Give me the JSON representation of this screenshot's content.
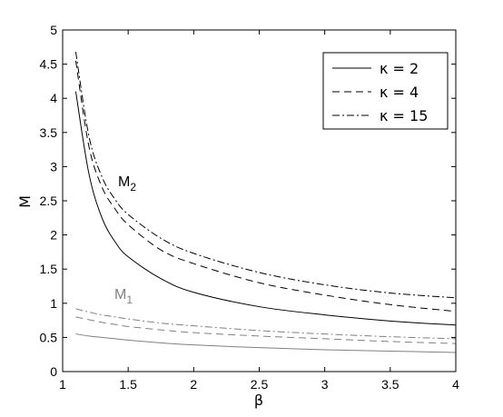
{
  "chart_data": {
    "type": "line",
    "xlabel": "β",
    "ylabel": "M",
    "xlim": [
      1,
      4
    ],
    "ylim": [
      0,
      5
    ],
    "xticks": [
      "1",
      "1.5",
      "2",
      "2.5",
      "3",
      "3.5",
      "4"
    ],
    "yticks": [
      "0",
      "0.5",
      "1",
      "1.5",
      "2",
      "2.5",
      "3",
      "3.5",
      "4",
      "4.5",
      "5"
    ],
    "grid": false,
    "legend_position": "top-right",
    "legend": [
      {
        "label": "κ = 2",
        "style": "solid"
      },
      {
        "label": "κ = 4",
        "style": "dashed"
      },
      {
        "label": "κ = 15",
        "style": "dashdot"
      }
    ],
    "annotations": [
      {
        "base": "M",
        "sub": "2",
        "color": "#000000"
      },
      {
        "base": "M",
        "sub": "1",
        "color": "#808080"
      }
    ],
    "x": [
      1.1,
      1.2,
      1.3,
      1.4,
      1.5,
      1.75,
      2.0,
      2.5,
      3.0,
      3.5,
      4.0
    ],
    "series": [
      {
        "group": "M2",
        "kappa": "2",
        "style": "solid",
        "color": "#000000",
        "values": [
          4.1,
          2.9,
          2.25,
          1.9,
          1.68,
          1.36,
          1.16,
          0.95,
          0.83,
          0.74,
          0.68
        ]
      },
      {
        "group": "M2",
        "kappa": "4",
        "style": "dashed",
        "color": "#000000",
        "values": [
          4.55,
          3.3,
          2.7,
          2.38,
          2.15,
          1.78,
          1.58,
          1.3,
          1.12,
          0.98,
          0.88
        ]
      },
      {
        "group": "M2",
        "kappa": "15",
        "style": "dashdot",
        "color": "#000000",
        "values": [
          4.68,
          3.45,
          2.85,
          2.52,
          2.3,
          1.95,
          1.73,
          1.45,
          1.27,
          1.15,
          1.08
        ]
      },
      {
        "group": "M1",
        "kappa": "2",
        "style": "solid",
        "color": "#808080",
        "values": [
          0.55,
          0.52,
          0.5,
          0.48,
          0.46,
          0.42,
          0.39,
          0.35,
          0.32,
          0.3,
          0.28
        ]
      },
      {
        "group": "M1",
        "kappa": "4",
        "style": "dashed",
        "color": "#808080",
        "values": [
          0.8,
          0.76,
          0.72,
          0.69,
          0.66,
          0.61,
          0.57,
          0.52,
          0.48,
          0.44,
          0.41
        ]
      },
      {
        "group": "M1",
        "kappa": "15",
        "style": "dashdot",
        "color": "#808080",
        "values": [
          0.92,
          0.87,
          0.83,
          0.8,
          0.77,
          0.71,
          0.67,
          0.6,
          0.55,
          0.51,
          0.48
        ]
      }
    ]
  }
}
